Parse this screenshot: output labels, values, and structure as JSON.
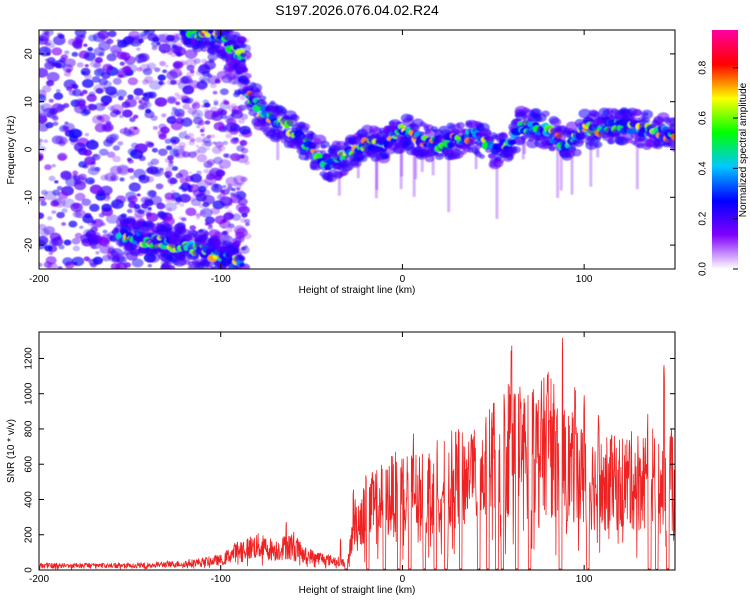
{
  "figure": {
    "title": "S197.2026.076.04.02.R24",
    "colors": {
      "background": "#ffffff",
      "axis": "#000000",
      "snr_line": "#ee2222"
    }
  },
  "chart_data": [
    {
      "type": "heatmap",
      "name": "spectrogram",
      "title": "S197.2026.076.04.02.R24",
      "xlabel": "Height of straight line (km)",
      "ylabel": "Frequency (Hz)",
      "xlim": [
        -200,
        150
      ],
      "ylim": [
        -25,
        25
      ],
      "xticks": [
        -200,
        -100,
        0,
        100
      ],
      "yticks": [
        -20,
        -10,
        0,
        10,
        20
      ],
      "colorbar": {
        "label": "Normalized spectral amplitude",
        "range": [
          0,
          0.95
        ],
        "ticks": [
          0.0,
          0.2,
          0.4,
          0.6,
          0.8
        ],
        "colormap": [
          "#ffffff",
          "#8000ff",
          "#0000ff",
          "#00c8ff",
          "#00ff00",
          "#ffff00",
          "#ff0000",
          "#ff00a0"
        ]
      },
      "ridges": [
        {
          "name": "main-ridge",
          "points": [
            [
              -85,
              12
            ],
            [
              -78,
              8
            ],
            [
              -70,
              6
            ],
            [
              -60,
              4
            ],
            [
              -50,
              0
            ],
            [
              -40,
              -3
            ],
            [
              -30,
              -1
            ],
            [
              -20,
              1
            ],
            [
              -10,
              1
            ],
            [
              0,
              4
            ],
            [
              10,
              2
            ],
            [
              20,
              1
            ],
            [
              30,
              2
            ],
            [
              40,
              3
            ],
            [
              50,
              0
            ],
            [
              60,
              1
            ],
            [
              65,
              5
            ],
            [
              80,
              4
            ],
            [
              90,
              1
            ],
            [
              100,
              4
            ],
            [
              120,
              5
            ],
            [
              150,
              3
            ]
          ]
        },
        {
          "name": "upper-band",
          "points": [
            [
              -120,
              25
            ],
            [
              -105,
              24
            ],
            [
              -92,
              21
            ],
            [
              -87,
              19
            ]
          ]
        },
        {
          "name": "lower-band",
          "points": [
            [
              -155,
              -18
            ],
            [
              -140,
              -19
            ],
            [
              -125,
              -20
            ],
            [
              -110,
              -21
            ],
            [
              -95,
              -23
            ],
            [
              -88,
              -24
            ]
          ]
        }
      ]
    },
    {
      "type": "line",
      "name": "snr",
      "xlabel": "Height of straight line (km)",
      "ylabel": "SNR (10 * v/v)",
      "xlim": [
        -200,
        150
      ],
      "ylim": [
        0,
        1350
      ],
      "xticks": [
        -200,
        -100,
        0,
        100
      ],
      "yticks": [
        0,
        200,
        400,
        600,
        800,
        1000,
        1200
      ],
      "envelope": [
        [
          -200,
          25
        ],
        [
          -150,
          30
        ],
        [
          -120,
          45
        ],
        [
          -100,
          70
        ],
        [
          -90,
          140
        ],
        [
          -80,
          170
        ],
        [
          -70,
          140
        ],
        [
          -60,
          180
        ],
        [
          -55,
          110
        ],
        [
          -40,
          70
        ],
        [
          -30,
          50
        ],
        [
          -27,
          310
        ],
        [
          -20,
          420
        ],
        [
          -10,
          500
        ],
        [
          0,
          560
        ],
        [
          10,
          550
        ],
        [
          20,
          600
        ],
        [
          30,
          650
        ],
        [
          40,
          640
        ],
        [
          45,
          680
        ],
        [
          50,
          780
        ],
        [
          60,
          900
        ],
        [
          70,
          800
        ],
        [
          80,
          900
        ],
        [
          90,
          750
        ],
        [
          100,
          650
        ],
        [
          110,
          600
        ],
        [
          120,
          620
        ],
        [
          130,
          640
        ],
        [
          140,
          650
        ],
        [
          150,
          600
        ]
      ],
      "peaks": [
        [
          -64,
          290
        ],
        [
          -34,
          180
        ],
        [
          -27,
          470
        ],
        [
          -20,
          550
        ],
        [
          -2,
          600
        ],
        [
          6,
          780
        ],
        [
          18,
          700
        ],
        [
          30,
          740
        ],
        [
          38,
          800
        ],
        [
          42,
          740
        ],
        [
          52,
          980
        ],
        [
          60,
          1300
        ],
        [
          65,
          1000
        ],
        [
          72,
          1050
        ],
        [
          80,
          1150
        ],
        [
          88,
          1330
        ],
        [
          95,
          1050
        ],
        [
          100,
          1000
        ],
        [
          108,
          900
        ],
        [
          115,
          800
        ],
        [
          125,
          800
        ],
        [
          135,
          900
        ],
        [
          140,
          1050
        ],
        [
          144,
          1180
        ],
        [
          148,
          800
        ]
      ],
      "dropouts": [
        -31,
        -19,
        -10,
        -2,
        4,
        12,
        18,
        24,
        32,
        42,
        47,
        52,
        55,
        63,
        70,
        87,
        102,
        136,
        140,
        146
      ]
    }
  ]
}
